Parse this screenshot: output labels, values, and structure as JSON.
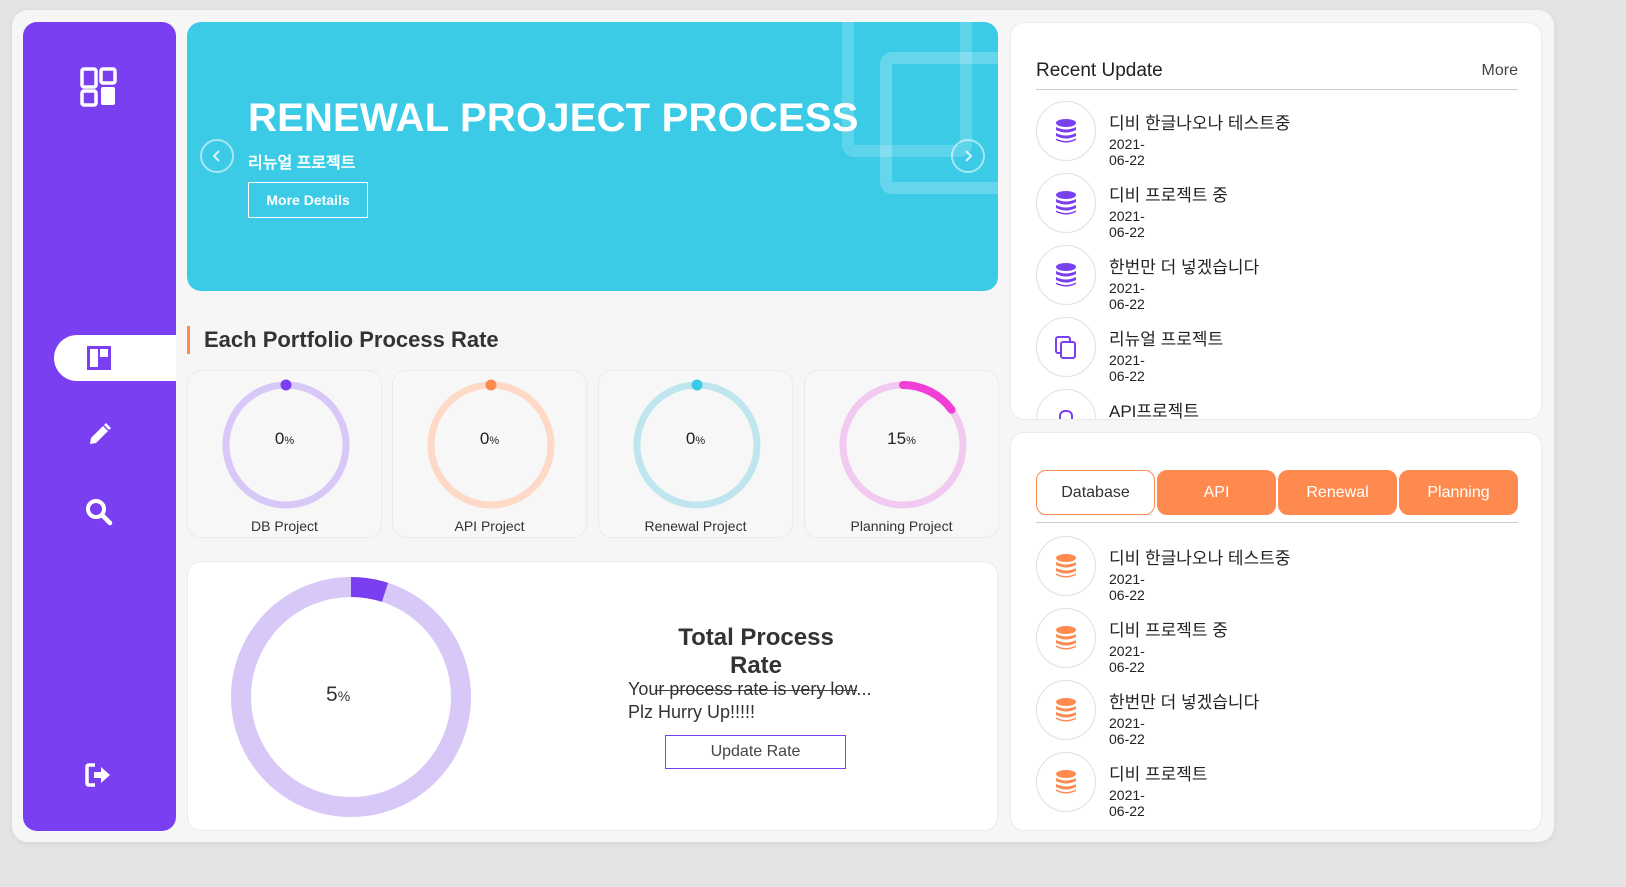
{
  "sidebar": {
    "icons": [
      "dashboard-icon",
      "board-icon",
      "pencil-icon",
      "search-icon",
      "logout-icon"
    ],
    "active_index": 1,
    "accent": "#7b3ff2"
  },
  "banner": {
    "title": "RENEWAL PROJECT PROCESS",
    "subtitle": "리뉴얼 프로젝트",
    "button": "More Details",
    "color": "#3bcbe7"
  },
  "portfolio": {
    "title": "Each Portfolio Process Rate",
    "cards": [
      {
        "label": "DB Project",
        "value": "0",
        "unit": "%",
        "progress": 0,
        "color": "#7b3ff2",
        "track": "#d7c8f7"
      },
      {
        "label": "API Project",
        "value": "0",
        "unit": "%",
        "progress": 0,
        "color": "#ff8a50",
        "track": "#ffd9c7"
      },
      {
        "label": "Renewal Project",
        "value": "0",
        "unit": "%",
        "progress": 0,
        "color": "#3bcbe7",
        "track": "#bfe6ee"
      },
      {
        "label": "Planning Project",
        "value": "15",
        "unit": "%",
        "progress": 15,
        "color": "#f03ed6",
        "track": "#f2c9f0"
      }
    ]
  },
  "total": {
    "value": "5",
    "unit": "%",
    "progress": 5,
    "heading": "Total Process Rate",
    "message_line1": "Your process rate is very low...",
    "message_line2": "Plz Hurry Up!!!!!",
    "button": "Update Rate"
  },
  "recent": {
    "title": "Recent Update",
    "more": "More",
    "items": [
      {
        "title": "디비 한글나오나 테스트중",
        "date": "2021-06-22",
        "icon": "database-icon"
      },
      {
        "title": "디비 프로젝트 중",
        "date": "2021-06-22",
        "icon": "database-icon"
      },
      {
        "title": "한번만 더 넣겠습니다",
        "date": "2021-06-22",
        "icon": "database-icon"
      },
      {
        "title": "리뉴얼 프로젝트",
        "date": "2021-06-22",
        "icon": "copy-icon"
      },
      {
        "title": "API프로젝트",
        "date": "",
        "icon": "api-icon"
      }
    ]
  },
  "categories": {
    "tabs": [
      "Database",
      "API",
      "Renewal",
      "Planning"
    ],
    "active_tab": "Database",
    "items": [
      {
        "title": "디비 한글나오나 테스트중",
        "date": "2021-06-22"
      },
      {
        "title": "디비 프로젝트 중",
        "date": "2021-06-22"
      },
      {
        "title": "한번만 더 넣겠습니다",
        "date": "2021-06-22"
      },
      {
        "title": "디비 프로젝트",
        "date": "2021-06-22"
      }
    ]
  }
}
